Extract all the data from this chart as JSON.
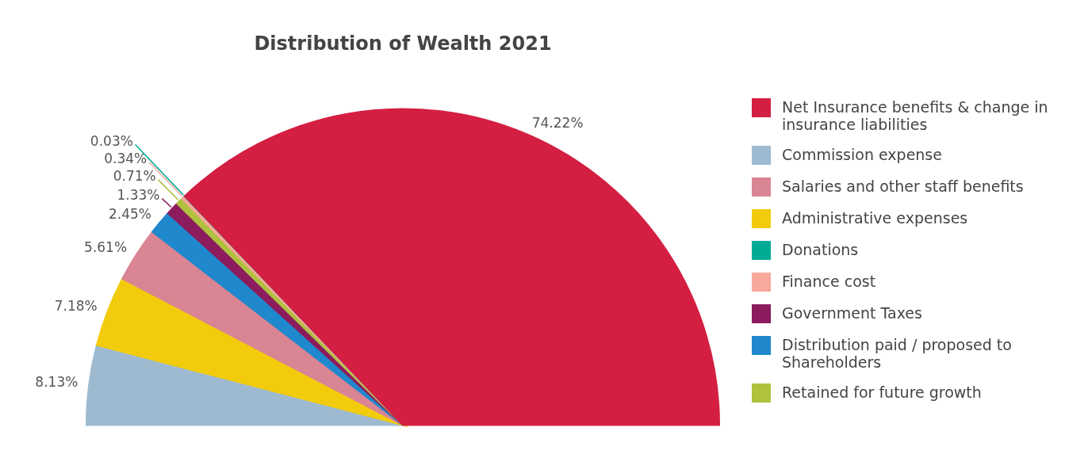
{
  "chart_data": {
    "type": "pie",
    "title": "Distribution of Wealth 2021",
    "categories": [
      "Net Insurance benefits & change in insurance liabilities",
      "Commission expense",
      "Salaries and other staff benefits",
      "Administrative expenses",
      "Donations",
      "Finance cost",
      "Government Taxes",
      "Distribution paid / proposed to Shareholders",
      "Retained for future growth"
    ],
    "values": [
      74.22,
      8.13,
      5.61,
      7.18,
      0.03,
      0.34,
      1.33,
      2.45,
      0.71
    ],
    "value_labels": [
      "74.22%",
      "8.13%",
      "5.61%",
      "7.18%",
      "0.03%",
      "0.34%",
      "1.33%",
      "2.45%",
      "0.71%"
    ],
    "colors": [
      "#d41f42",
      "#9dbad0",
      "#da8594",
      "#f2cc0c",
      "#00ab95",
      "#f8a99c",
      "#8c1c5e",
      "#2088cc",
      "#b0c13e"
    ],
    "legend": "right"
  }
}
